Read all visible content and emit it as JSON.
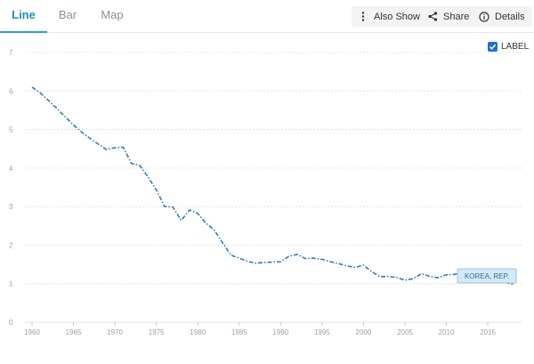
{
  "tabs": [
    {
      "id": "line",
      "label": "Line",
      "active": true
    },
    {
      "id": "bar",
      "label": "Bar",
      "active": false
    },
    {
      "id": "map",
      "label": "Map",
      "active": false
    }
  ],
  "toolbar": {
    "also_show_label": "Also Show",
    "share_label": "Share",
    "details_label": "Details"
  },
  "label_toggle": {
    "label": "LABEL",
    "checked": true
  },
  "colors": {
    "accent": "#2aa0cc",
    "series": "#2f7fb3",
    "grid": "#e3e3e3",
    "tag_bg": "#d4e8f6",
    "tag_border": "#8ab8d8"
  },
  "chart_data": {
    "type": "line",
    "ylim": [
      0,
      7
    ],
    "yticks": [
      0,
      1,
      2,
      3,
      4,
      5,
      6,
      7
    ],
    "xlim": [
      1960,
      2018
    ],
    "xticks": [
      1960,
      1965,
      1970,
      1975,
      1980,
      1985,
      1990,
      1995,
      2000,
      2005,
      2010,
      2015
    ],
    "grid": true,
    "series": [
      {
        "name": "KOREA, REP.",
        "style": "dash-dot",
        "x": [
          1960,
          1961,
          1962,
          1963,
          1964,
          1965,
          1966,
          1967,
          1968,
          1969,
          1970,
          1971,
          1972,
          1973,
          1974,
          1975,
          1976,
          1977,
          1978,
          1979,
          1980,
          1981,
          1982,
          1983,
          1984,
          1985,
          1986,
          1987,
          1988,
          1989,
          1990,
          1991,
          1992,
          1993,
          1994,
          1995,
          1996,
          1997,
          1998,
          1999,
          2000,
          2001,
          2002,
          2003,
          2004,
          2005,
          2006,
          2007,
          2008,
          2009,
          2010,
          2011,
          2012,
          2013,
          2014,
          2015,
          2016,
          2017,
          2018
        ],
        "values": [
          6.1,
          5.95,
          5.75,
          5.55,
          5.33,
          5.12,
          4.93,
          4.77,
          4.62,
          4.48,
          4.53,
          4.54,
          4.12,
          4.07,
          3.77,
          3.43,
          3.0,
          2.99,
          2.64,
          2.91,
          2.82,
          2.57,
          2.39,
          2.06,
          1.74,
          1.66,
          1.58,
          1.53,
          1.55,
          1.56,
          1.57,
          1.71,
          1.76,
          1.65,
          1.66,
          1.63,
          1.57,
          1.52,
          1.46,
          1.42,
          1.48,
          1.31,
          1.18,
          1.19,
          1.16,
          1.09,
          1.13,
          1.26,
          1.19,
          1.15,
          1.23,
          1.24,
          1.3,
          1.19,
          1.21,
          1.24,
          1.17,
          1.05,
          0.98
        ]
      }
    ]
  }
}
